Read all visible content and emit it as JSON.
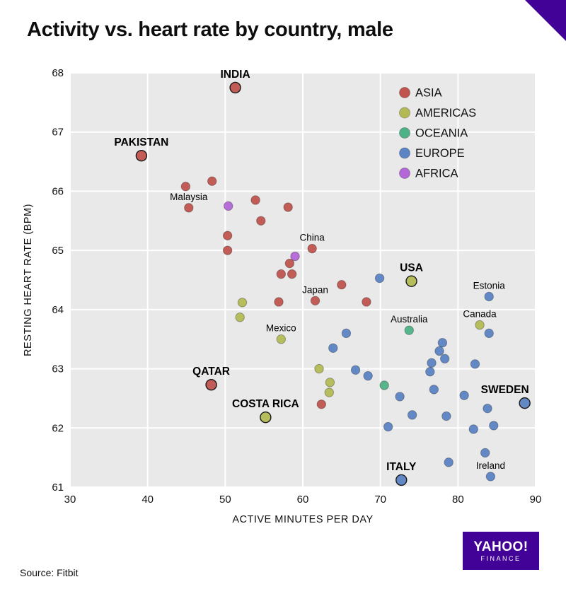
{
  "title": "Activity vs. heart rate by country, male",
  "source": "Source: Fitbit",
  "logo": {
    "line1": "YAHOO!",
    "line2": "FINANCE"
  },
  "brand_color": "#430297",
  "chart_data": {
    "type": "scatter",
    "title": "Activity vs. heart rate by country, male",
    "xlabel": "ACTIVE MINUTES PER DAY",
    "ylabel": "RESTING HEART RATE (BPM)",
    "xlim": [
      30,
      90
    ],
    "ylim": [
      61,
      68
    ],
    "xticks": [
      30,
      40,
      50,
      60,
      70,
      80,
      90
    ],
    "yticks": [
      61,
      62,
      63,
      64,
      65,
      66,
      67,
      68
    ],
    "grid": true,
    "plot_bg": "#e9e9e9",
    "grid_color": "#ffffff",
    "legend_position": "top-right",
    "legend": [
      {
        "label": "ASIA",
        "color": "#c0544f"
      },
      {
        "label": "AMERICAS",
        "color": "#b3ba55"
      },
      {
        "label": "OCEANIA",
        "color": "#4fb286"
      },
      {
        "label": "EUROPE",
        "color": "#5b84c4"
      },
      {
        "label": "AFRICA",
        "color": "#b467d8"
      }
    ],
    "series": [
      {
        "name": "ASIA",
        "color": "#c0544f",
        "points": [
          {
            "x": 51.3,
            "y": 67.75,
            "label": "INDIA",
            "bold": true
          },
          {
            "x": 39.2,
            "y": 66.6,
            "label": "PAKISTAN",
            "bold": true
          },
          {
            "x": 44.9,
            "y": 66.08
          },
          {
            "x": 48.3,
            "y": 66.17
          },
          {
            "x": 45.3,
            "y": 65.72,
            "label": "Malaysia"
          },
          {
            "x": 53.9,
            "y": 65.85
          },
          {
            "x": 58.1,
            "y": 65.73
          },
          {
            "x": 54.6,
            "y": 65.5
          },
          {
            "x": 50.3,
            "y": 65.25
          },
          {
            "x": 50.3,
            "y": 65.0
          },
          {
            "x": 61.2,
            "y": 65.03,
            "label": "China"
          },
          {
            "x": 58.3,
            "y": 64.78
          },
          {
            "x": 57.2,
            "y": 64.6
          },
          {
            "x": 58.6,
            "y": 64.6
          },
          {
            "x": 65.0,
            "y": 64.42
          },
          {
            "x": 56.9,
            "y": 64.13
          },
          {
            "x": 61.6,
            "y": 64.15,
            "label": "Japan"
          },
          {
            "x": 68.2,
            "y": 64.13
          },
          {
            "x": 48.2,
            "y": 62.73,
            "label": "QATAR",
            "bold": true
          },
          {
            "x": 62.4,
            "y": 62.4
          }
        ]
      },
      {
        "name": "AMERICAS",
        "color": "#b3ba55",
        "points": [
          {
            "x": 74.0,
            "y": 64.48,
            "label": "USA",
            "bold": true
          },
          {
            "x": 52.2,
            "y": 64.12
          },
          {
            "x": 51.9,
            "y": 63.87
          },
          {
            "x": 82.8,
            "y": 63.74,
            "label": "Canada"
          },
          {
            "x": 57.2,
            "y": 63.5,
            "label": "Mexico"
          },
          {
            "x": 62.1,
            "y": 63.0
          },
          {
            "x": 63.5,
            "y": 62.77
          },
          {
            "x": 63.4,
            "y": 62.6
          },
          {
            "x": 55.2,
            "y": 62.18,
            "label": "COSTA RICA",
            "bold": true
          }
        ]
      },
      {
        "name": "OCEANIA",
        "color": "#4fb286",
        "points": [
          {
            "x": 73.7,
            "y": 63.65,
            "label": "Australia"
          },
          {
            "x": 70.5,
            "y": 62.72
          }
        ]
      },
      {
        "name": "EUROPE",
        "color": "#5b84c4",
        "points": [
          {
            "x": 69.9,
            "y": 64.53
          },
          {
            "x": 84.0,
            "y": 64.22,
            "label": "Estonia"
          },
          {
            "x": 84.0,
            "y": 63.6
          },
          {
            "x": 78.0,
            "y": 63.44
          },
          {
            "x": 77.6,
            "y": 63.3
          },
          {
            "x": 78.3,
            "y": 63.17
          },
          {
            "x": 76.6,
            "y": 63.1
          },
          {
            "x": 76.4,
            "y": 62.95
          },
          {
            "x": 82.2,
            "y": 63.08
          },
          {
            "x": 63.9,
            "y": 63.35
          },
          {
            "x": 65.6,
            "y": 63.6
          },
          {
            "x": 66.8,
            "y": 62.98
          },
          {
            "x": 68.4,
            "y": 62.88
          },
          {
            "x": 76.9,
            "y": 62.65
          },
          {
            "x": 80.8,
            "y": 62.55
          },
          {
            "x": 72.5,
            "y": 62.53
          },
          {
            "x": 74.1,
            "y": 62.22
          },
          {
            "x": 78.5,
            "y": 62.2
          },
          {
            "x": 71.0,
            "y": 62.02
          },
          {
            "x": 82.0,
            "y": 61.98
          },
          {
            "x": 83.8,
            "y": 62.33
          },
          {
            "x": 84.6,
            "y": 62.04
          },
          {
            "x": 78.8,
            "y": 61.42
          },
          {
            "x": 83.5,
            "y": 61.58
          },
          {
            "x": 88.6,
            "y": 62.42,
            "label": "SWEDEN",
            "bold": true,
            "dx": -28
          },
          {
            "x": 84.2,
            "y": 61.18,
            "label": "Ireland"
          },
          {
            "x": 72.7,
            "y": 61.12,
            "label": "ITALY",
            "bold": true
          }
        ]
      },
      {
        "name": "AFRICA",
        "color": "#b467d8",
        "points": [
          {
            "x": 50.4,
            "y": 65.75
          },
          {
            "x": 59.0,
            "y": 64.9
          }
        ]
      }
    ]
  }
}
